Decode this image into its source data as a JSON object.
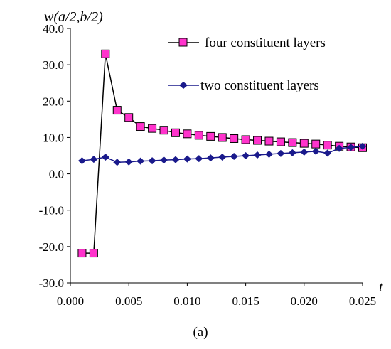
{
  "chart_data": {
    "type": "line",
    "ylabel": "w(a/2,b/2)",
    "xlabel": "t",
    "caption": "(a)",
    "xlim": [
      0.0,
      0.025
    ],
    "ylim": [
      -30.0,
      40.0
    ],
    "x_ticks": [
      "0.000",
      "0.005",
      "0.010",
      "0.015",
      "0.020",
      "0.025"
    ],
    "y_ticks": [
      "40.0",
      "30.0",
      "20.0",
      "10.0",
      "0.0",
      "-10.0",
      "-20.0",
      "-30.0"
    ],
    "grid": false,
    "legend_position": "top-right",
    "series": [
      {
        "name": "four constituent layers",
        "color": "#ff33cc",
        "marker": "square",
        "x": [
          0.001,
          0.002,
          0.003,
          0.004,
          0.005,
          0.006,
          0.007,
          0.008,
          0.009,
          0.01,
          0.011,
          0.012,
          0.013,
          0.014,
          0.015,
          0.016,
          0.017,
          0.018,
          0.019,
          0.02,
          0.021,
          0.022,
          0.023,
          0.024,
          0.025
        ],
        "values": [
          -21.8,
          -21.8,
          33.0,
          17.5,
          15.5,
          13.0,
          12.5,
          12.0,
          11.3,
          11.0,
          10.6,
          10.3,
          10.0,
          9.7,
          9.4,
          9.2,
          9.0,
          8.8,
          8.6,
          8.4,
          8.2,
          7.9,
          7.6,
          7.4,
          7.2
        ]
      },
      {
        "name": "two constituent layers",
        "color": "#1a1a8c",
        "marker": "diamond",
        "x": [
          0.001,
          0.002,
          0.003,
          0.004,
          0.005,
          0.006,
          0.007,
          0.008,
          0.009,
          0.01,
          0.011,
          0.012,
          0.013,
          0.014,
          0.015,
          0.016,
          0.017,
          0.018,
          0.019,
          0.02,
          0.021,
          0.022,
          0.023,
          0.024,
          0.025
        ],
        "values": [
          3.6,
          4.0,
          4.6,
          3.2,
          3.3,
          3.5,
          3.6,
          3.8,
          3.9,
          4.1,
          4.2,
          4.4,
          4.6,
          4.8,
          5.0,
          5.2,
          5.4,
          5.6,
          5.8,
          6.0,
          6.2,
          5.7,
          7.0,
          7.3,
          7.6
        ]
      }
    ]
  }
}
